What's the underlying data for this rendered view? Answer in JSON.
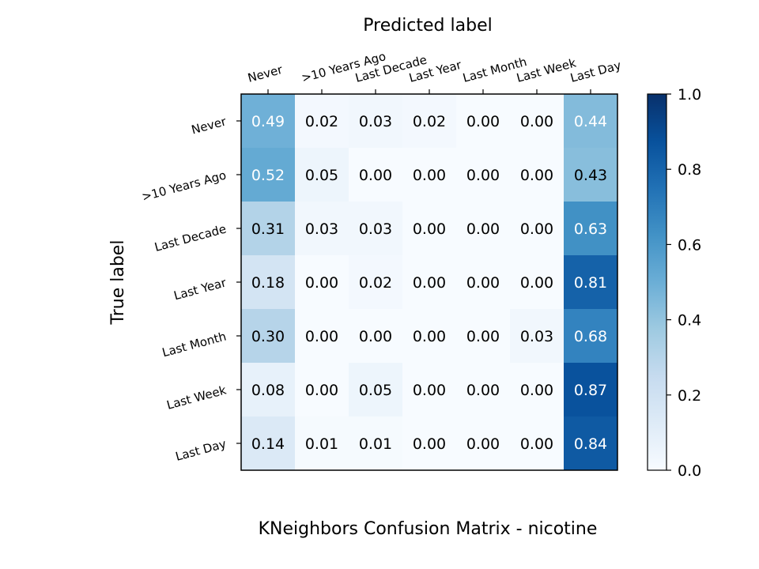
{
  "chart_data": {
    "type": "heatmap",
    "title": "KNeighbors Confusion Matrix - nicotine",
    "xlabel": "Predicted label",
    "ylabel": "True label",
    "x_categories": [
      "Never",
      ">10 Years Ago",
      "Last Decade",
      "Last Year",
      "Last Month",
      "Last Week",
      "Last Day"
    ],
    "y_categories": [
      "Never",
      ">10 Years Ago",
      "Last Decade",
      "Last Year",
      "Last Month",
      "Last Week",
      "Last Day"
    ],
    "values": [
      [
        0.49,
        0.02,
        0.03,
        0.02,
        0.0,
        0.0,
        0.44
      ],
      [
        0.52,
        0.05,
        0.0,
        0.0,
        0.0,
        0.0,
        0.43
      ],
      [
        0.31,
        0.03,
        0.03,
        0.0,
        0.0,
        0.0,
        0.63
      ],
      [
        0.18,
        0.0,
        0.02,
        0.0,
        0.0,
        0.0,
        0.81
      ],
      [
        0.3,
        0.0,
        0.0,
        0.0,
        0.0,
        0.03,
        0.68
      ],
      [
        0.08,
        0.0,
        0.05,
        0.0,
        0.0,
        0.0,
        0.87
      ],
      [
        0.14,
        0.01,
        0.01,
        0.0,
        0.0,
        0.0,
        0.84
      ]
    ],
    "colormap": "Blues",
    "colorbar": {
      "range": [
        0.0,
        1.0
      ],
      "ticks": [
        "0.0",
        "0.2",
        "0.4",
        "0.6",
        "0.8",
        "1.0"
      ]
    },
    "x_tick_position": "top",
    "grid": false
  }
}
